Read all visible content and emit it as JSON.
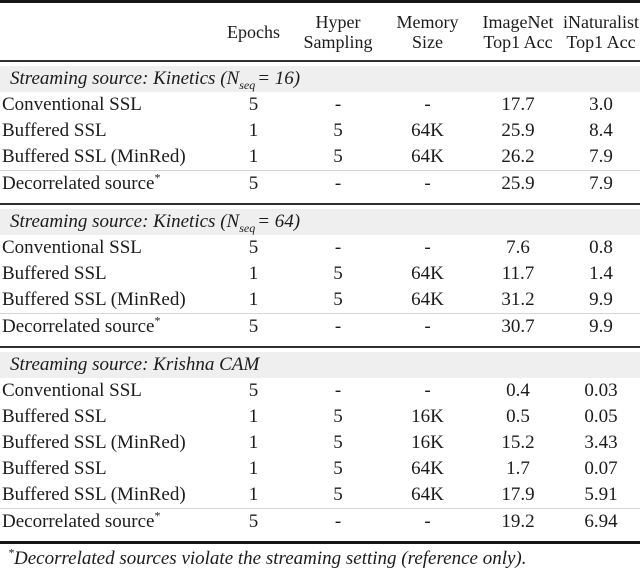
{
  "colors": {
    "band_bg": "#efefef",
    "rule_heavy": "#161616",
    "rule_dark": "#2f2f2f",
    "rule_light": "#d6d6d6",
    "text": "#1b1b1b"
  },
  "table": {
    "columns": [
      {
        "id": "label",
        "lines": []
      },
      {
        "id": "epochs",
        "lines": [
          "Epochs"
        ]
      },
      {
        "id": "hyper-sampling",
        "lines": [
          "Hyper",
          "Sampling"
        ]
      },
      {
        "id": "memory-size",
        "lines": [
          "Memory",
          "Size"
        ]
      },
      {
        "id": "imagenet-top1-acc",
        "lines": [
          "ImageNet",
          "Top1 Acc"
        ]
      },
      {
        "id": "inaturalist-top1-acc",
        "lines": [
          "iNaturalist",
          "Top1 Acc"
        ]
      }
    ],
    "sections": [
      {
        "title": {
          "text": "Streaming source: Kinetics (",
          "math": {
            "var": "N",
            "sub": "seq"
          },
          "tail": "= 16)"
        },
        "rows": [
          {
            "label": "Conventional SSL",
            "marker": "",
            "cells": [
              "5",
              "-",
              "-",
              "17.7",
              "3.0"
            ]
          },
          {
            "label": "Buffered SSL",
            "marker": "",
            "cells": [
              "1",
              "5",
              "64K",
              "25.9",
              "8.4"
            ]
          },
          {
            "label": "Buffered SSL (MinRed)",
            "marker": "",
            "cells": [
              "1",
              "5",
              "64K",
              "26.2",
              "7.9"
            ]
          }
        ],
        "reference_row": {
          "label": "Decorrelated source",
          "marker": "*",
          "cells": [
            "5",
            "-",
            "-",
            "25.9",
            "7.9"
          ]
        }
      },
      {
        "title": {
          "text": "Streaming source: Kinetics (",
          "math": {
            "var": "N",
            "sub": "seq"
          },
          "tail": "= 64)"
        },
        "rows": [
          {
            "label": "Conventional SSL",
            "marker": "",
            "cells": [
              "5",
              "-",
              "-",
              "7.6",
              "0.8"
            ]
          },
          {
            "label": "Buffered SSL",
            "marker": "",
            "cells": [
              "1",
              "5",
              "64K",
              "11.7",
              "1.4"
            ]
          },
          {
            "label": "Buffered SSL (MinRed)",
            "marker": "",
            "cells": [
              "1",
              "5",
              "64K",
              "31.2",
              "9.9"
            ]
          }
        ],
        "reference_row": {
          "label": "Decorrelated source",
          "marker": "*",
          "cells": [
            "5",
            "-",
            "-",
            "30.7",
            "9.9"
          ]
        }
      },
      {
        "title": {
          "text": "Streaming source: Krishna CAM",
          "math": null,
          "tail": ""
        },
        "rows": [
          {
            "label": "Conventional SSL",
            "marker": "",
            "cells": [
              "5",
              "-",
              "-",
              "0.4",
              "0.03"
            ]
          },
          {
            "label": "Buffered SSL",
            "marker": "",
            "cells": [
              "1",
              "5",
              "16K",
              "0.5",
              "0.05"
            ]
          },
          {
            "label": "Buffered SSL (MinRed)",
            "marker": "",
            "cells": [
              "1",
              "5",
              "16K",
              "15.2",
              "3.43"
            ]
          },
          {
            "label": "Buffered SSL",
            "marker": "",
            "cells": [
              "1",
              "5",
              "64K",
              "1.7",
              "0.07"
            ]
          },
          {
            "label": "Buffered SSL (MinRed)",
            "marker": "",
            "cells": [
              "1",
              "5",
              "64K",
              "17.9",
              "5.91"
            ]
          }
        ],
        "reference_row": {
          "label": "Decorrelated source",
          "marker": "*",
          "cells": [
            "5",
            "-",
            "-",
            "19.2",
            "6.94"
          ]
        }
      }
    ],
    "footnote": {
      "marker": "*",
      "text": "Decorrelated sources violate the streaming setting (reference only)."
    }
  }
}
